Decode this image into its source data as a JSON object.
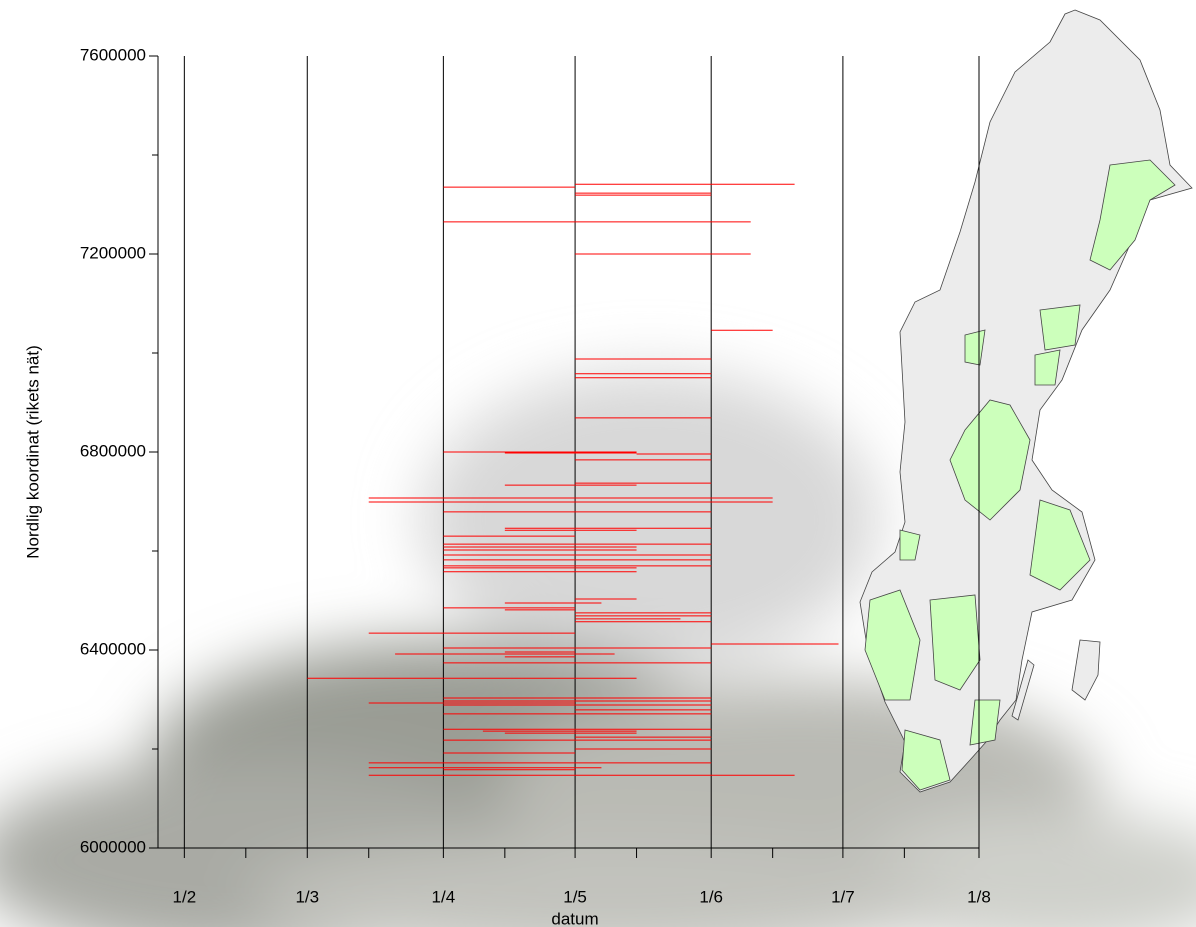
{
  "chart_data": {
    "type": "interval",
    "xlabel": "datum",
    "ylabel": "Nordlig koordinat (rikets nät)",
    "color": "#ff0000",
    "xlim": [
      26,
      213
    ],
    "xticks": [
      {
        "value": 32,
        "label": "1/2"
      },
      {
        "value": 60,
        "label": "1/3"
      },
      {
        "value": 91,
        "label": "1/4"
      },
      {
        "value": 121,
        "label": "1/5"
      },
      {
        "value": 152,
        "label": "1/6"
      },
      {
        "value": 182,
        "label": "1/7"
      },
      {
        "value": 213,
        "label": "1/8"
      }
    ],
    "xminorticks": [
      46,
      74,
      105,
      135,
      166,
      196
    ],
    "ylim": [
      6000000,
      7600000
    ],
    "yticks": [
      6000000,
      6400000,
      6800000,
      7200000,
      7600000
    ],
    "yminorticks": [
      6200000,
      6600000,
      7000000,
      7400000
    ],
    "segments": {
      "y": [
        7341000,
        7335000,
        7323000,
        7319000,
        7265000,
        7200000,
        7046000,
        6988000,
        6958000,
        6950000,
        6869000,
        6800000,
        6798000,
        6796000,
        6784000,
        6733000,
        6737000,
        6707000,
        6699000,
        6679000,
        6646000,
        6642000,
        6630000,
        6614000,
        6608000,
        6602000,
        6592000,
        6582000,
        6570000,
        6566000,
        6558000,
        6503000,
        6495000,
        6485000,
        6481000,
        6475000,
        6469000,
        6463000,
        6457000,
        6434000,
        6412000,
        6404000,
        6396000,
        6392000,
        6386000,
        6374000,
        6343000,
        6303000,
        6297000,
        6293000,
        6289000,
        6279000,
        6271000,
        6240000,
        6236000,
        6232000,
        6224000,
        6218000,
        6200000,
        6192000,
        6172000,
        6162000,
        6158000,
        6147000
      ],
      "start": [
        121,
        91,
        121,
        121,
        91,
        121,
        152,
        121,
        121,
        121,
        121,
        91,
        105,
        135,
        121,
        105,
        121,
        74,
        74,
        91,
        105,
        105,
        91,
        91,
        91,
        91,
        91,
        91,
        91,
        91,
        91,
        121,
        105,
        91,
        105,
        121,
        121,
        121,
        121,
        74,
        152,
        91,
        105,
        80,
        105,
        91,
        60,
        91,
        91,
        74,
        91,
        121,
        91,
        91,
        100,
        105,
        121,
        91,
        121,
        91,
        74,
        74,
        91,
        74
      ],
      "end": [
        171,
        121,
        152,
        152,
        161,
        161,
        166,
        152,
        152,
        152,
        152,
        135,
        135,
        152,
        152,
        135,
        152,
        166,
        166,
        152,
        152,
        135,
        121,
        152,
        135,
        135,
        152,
        152,
        152,
        135,
        135,
        135,
        127,
        121,
        121,
        152,
        152,
        145,
        152,
        121,
        181,
        152,
        121,
        130,
        121,
        152,
        135,
        152,
        152,
        121,
        152,
        152,
        152,
        152,
        135,
        135,
        152,
        152,
        152,
        121,
        152,
        127,
        121,
        171
      ]
    }
  }
}
